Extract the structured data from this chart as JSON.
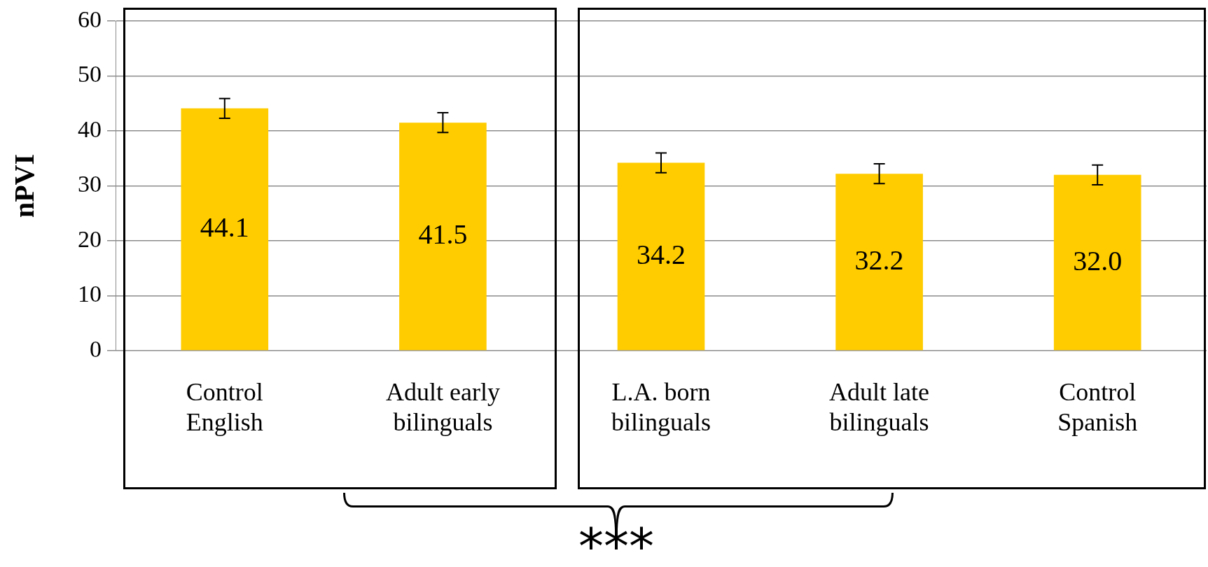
{
  "chart_data": {
    "type": "bar",
    "ylabel": "nPVI",
    "categories": [
      "Control English",
      "Adult early bilinguals",
      "L.A. born bilinguals",
      "Adult late bilinguals",
      "Control Spanish"
    ],
    "values": [
      44.1,
      41.5,
      34.2,
      32.2,
      32.0
    ],
    "errors": [
      1.8,
      1.8,
      1.8,
      1.8,
      1.8
    ],
    "color": "#ffcc00",
    "value_labels": [
      "44.1",
      "41.5",
      "34.2",
      "32.2",
      "32.0"
    ],
    "ylim": [
      0,
      60
    ],
    "yticks": [
      0,
      10,
      20,
      30,
      40,
      50,
      60
    ],
    "grid": "y",
    "annotations": [
      "***"
    ]
  }
}
